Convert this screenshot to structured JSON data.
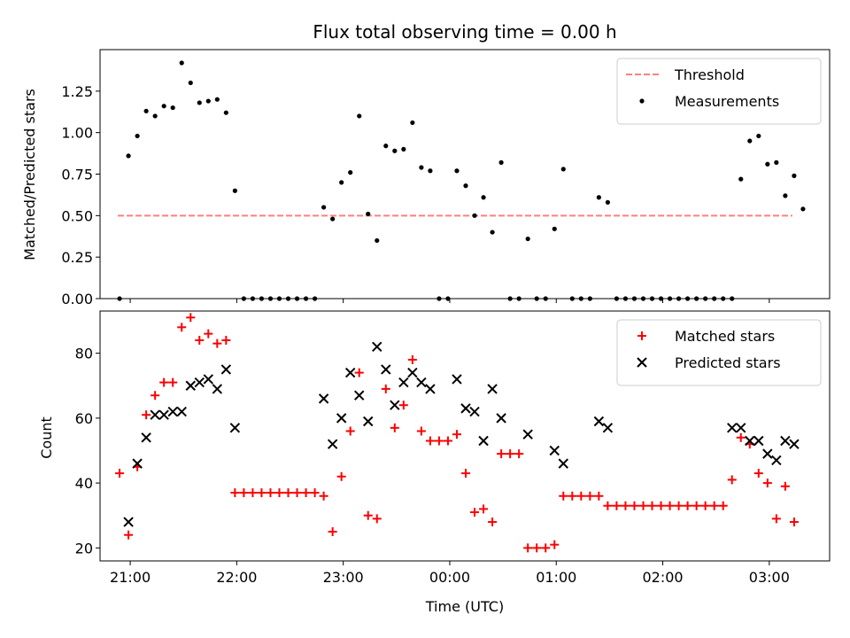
{
  "chart_data": [
    {
      "type": "scatter",
      "title": "Flux total observing time = 0.00 h",
      "xlabel": "",
      "ylabel": "Matched/Predicted stars",
      "ylim": [
        0,
        1.5
      ],
      "yticks": [
        0.0,
        0.25,
        0.5,
        0.75,
        1.0,
        1.25
      ],
      "ytick_labels": [
        "0.00",
        "0.25",
        "0.50",
        "0.75",
        "1.00",
        "1.25"
      ],
      "xlim": [
        "20:43",
        "03:34"
      ],
      "xticks": [
        "21:00",
        "22:00",
        "23:00",
        "00:00",
        "01:00",
        "02:00",
        "03:00"
      ],
      "legend_position": "top-right",
      "threshold": {
        "name": "Threshold",
        "value": 0.5,
        "x_start": "20:53",
        "x_end": "03:13",
        "color": "#ff7f7f"
      },
      "series": [
        {
          "name": "Measurements",
          "color": "#000000",
          "marker": "dot",
          "points": [
            [
              "20:54",
              0.0
            ],
            [
              "20:59",
              0.86
            ],
            [
              "21:04",
              0.98
            ],
            [
              "21:09",
              1.13
            ],
            [
              "21:14",
              1.1
            ],
            [
              "21:19",
              1.16
            ],
            [
              "21:24",
              1.15
            ],
            [
              "21:29",
              1.42
            ],
            [
              "21:34",
              1.3
            ],
            [
              "21:39",
              1.18
            ],
            [
              "21:44",
              1.19
            ],
            [
              "21:49",
              1.2
            ],
            [
              "21:54",
              1.12
            ],
            [
              "21:59",
              0.65
            ],
            [
              "22:04",
              0.0
            ],
            [
              "22:09",
              0.0
            ],
            [
              "22:14",
              0.0
            ],
            [
              "22:19",
              0.0
            ],
            [
              "22:24",
              0.0
            ],
            [
              "22:29",
              0.0
            ],
            [
              "22:34",
              0.0
            ],
            [
              "22:39",
              0.0
            ],
            [
              "22:44",
              0.0
            ],
            [
              "22:49",
              0.55
            ],
            [
              "22:54",
              0.48
            ],
            [
              "22:59",
              0.7
            ],
            [
              "23:04",
              0.76
            ],
            [
              "23:09",
              1.1
            ],
            [
              "23:14",
              0.51
            ],
            [
              "23:19",
              0.35
            ],
            [
              "23:24",
              0.92
            ],
            [
              "23:29",
              0.89
            ],
            [
              "23:34",
              0.9
            ],
            [
              "23:39",
              1.06
            ],
            [
              "23:44",
              0.79
            ],
            [
              "23:49",
              0.77
            ],
            [
              "23:54",
              0.0
            ],
            [
              "23:59",
              0.0
            ],
            [
              "00:04",
              0.77
            ],
            [
              "00:09",
              0.68
            ],
            [
              "00:14",
              0.5
            ],
            [
              "00:19",
              0.61
            ],
            [
              "00:24",
              0.4
            ],
            [
              "00:29",
              0.82
            ],
            [
              "00:34",
              0.0
            ],
            [
              "00:39",
              0.0
            ],
            [
              "00:44",
              0.36
            ],
            [
              "00:49",
              0.0
            ],
            [
              "00:54",
              0.0
            ],
            [
              "00:59",
              0.42
            ],
            [
              "01:04",
              0.78
            ],
            [
              "01:09",
              0.0
            ],
            [
              "01:14",
              0.0
            ],
            [
              "01:19",
              0.0
            ],
            [
              "01:24",
              0.61
            ],
            [
              "01:29",
              0.58
            ],
            [
              "01:34",
              0.0
            ],
            [
              "01:39",
              0.0
            ],
            [
              "01:44",
              0.0
            ],
            [
              "01:49",
              0.0
            ],
            [
              "01:54",
              0.0
            ],
            [
              "01:59",
              0.0
            ],
            [
              "02:04",
              0.0
            ],
            [
              "02:09",
              0.0
            ],
            [
              "02:14",
              0.0
            ],
            [
              "02:19",
              0.0
            ],
            [
              "02:24",
              0.0
            ],
            [
              "02:29",
              0.0
            ],
            [
              "02:34",
              0.0
            ],
            [
              "02:39",
              0.0
            ],
            [
              "02:44",
              0.72
            ],
            [
              "02:49",
              0.95
            ],
            [
              "02:54",
              0.98
            ],
            [
              "02:59",
              0.81
            ],
            [
              "03:04",
              0.82
            ],
            [
              "03:09",
              0.62
            ],
            [
              "03:14",
              0.74
            ],
            [
              "03:19",
              0.54
            ]
          ]
        }
      ]
    },
    {
      "type": "scatter",
      "title": "",
      "xlabel": "Time (UTC)",
      "ylabel": "Count",
      "ylim": [
        16,
        93
      ],
      "yticks": [
        20,
        40,
        60,
        80
      ],
      "ytick_labels": [
        "20",
        "40",
        "60",
        "80"
      ],
      "xlim": [
        "20:43",
        "03:34"
      ],
      "xticks": [
        "21:00",
        "22:00",
        "23:00",
        "00:00",
        "01:00",
        "02:00",
        "03:00"
      ],
      "xtick_labels": [
        "21:00",
        "22:00",
        "23:00",
        "00:00",
        "01:00",
        "02:00",
        "03:00"
      ],
      "legend_position": "top-right",
      "series": [
        {
          "name": "Matched stars",
          "color": "#ff0000",
          "marker": "plus",
          "points": [
            [
              "20:54",
              43
            ],
            [
              "20:59",
              24
            ],
            [
              "21:04",
              45
            ],
            [
              "21:09",
              61
            ],
            [
              "21:14",
              67
            ],
            [
              "21:19",
              71
            ],
            [
              "21:24",
              71
            ],
            [
              "21:29",
              88
            ],
            [
              "21:34",
              91
            ],
            [
              "21:39",
              84
            ],
            [
              "21:44",
              86
            ],
            [
              "21:49",
              83
            ],
            [
              "21:54",
              84
            ],
            [
              "21:59",
              37
            ],
            [
              "22:04",
              37
            ],
            [
              "22:09",
              37
            ],
            [
              "22:14",
              37
            ],
            [
              "22:19",
              37
            ],
            [
              "22:24",
              37
            ],
            [
              "22:29",
              37
            ],
            [
              "22:34",
              37
            ],
            [
              "22:39",
              37
            ],
            [
              "22:44",
              37
            ],
            [
              "22:49",
              36
            ],
            [
              "22:54",
              25
            ],
            [
              "22:59",
              42
            ],
            [
              "23:04",
              56
            ],
            [
              "23:09",
              74
            ],
            [
              "23:14",
              30
            ],
            [
              "23:19",
              29
            ],
            [
              "23:24",
              69
            ],
            [
              "23:29",
              57
            ],
            [
              "23:34",
              64
            ],
            [
              "23:39",
              78
            ],
            [
              "23:44",
              56
            ],
            [
              "23:49",
              53
            ],
            [
              "23:54",
              53
            ],
            [
              "23:59",
              53
            ],
            [
              "00:04",
              55
            ],
            [
              "00:09",
              43
            ],
            [
              "00:14",
              31
            ],
            [
              "00:19",
              32
            ],
            [
              "00:24",
              28
            ],
            [
              "00:29",
              49
            ],
            [
              "00:34",
              49
            ],
            [
              "00:39",
              49
            ],
            [
              "00:44",
              20
            ],
            [
              "00:49",
              20
            ],
            [
              "00:54",
              20
            ],
            [
              "00:59",
              21
            ],
            [
              "01:04",
              36
            ],
            [
              "01:09",
              36
            ],
            [
              "01:14",
              36
            ],
            [
              "01:19",
              36
            ],
            [
              "01:24",
              36
            ],
            [
              "01:29",
              33
            ],
            [
              "01:34",
              33
            ],
            [
              "01:39",
              33
            ],
            [
              "01:44",
              33
            ],
            [
              "01:49",
              33
            ],
            [
              "01:54",
              33
            ],
            [
              "01:59",
              33
            ],
            [
              "02:04",
              33
            ],
            [
              "02:09",
              33
            ],
            [
              "02:14",
              33
            ],
            [
              "02:19",
              33
            ],
            [
              "02:24",
              33
            ],
            [
              "02:29",
              33
            ],
            [
              "02:34",
              33
            ],
            [
              "02:39",
              41
            ],
            [
              "02:44",
              54
            ],
            [
              "02:49",
              52
            ],
            [
              "02:54",
              43
            ],
            [
              "02:59",
              40
            ],
            [
              "03:04",
              29
            ],
            [
              "03:09",
              39
            ],
            [
              "03:14",
              28
            ]
          ]
        },
        {
          "name": "Predicted stars",
          "color": "#000000",
          "marker": "x",
          "points": [
            [
              "20:59",
              28
            ],
            [
              "21:04",
              46
            ],
            [
              "21:09",
              54
            ],
            [
              "21:14",
              61
            ],
            [
              "21:19",
              61
            ],
            [
              "21:24",
              62
            ],
            [
              "21:29",
              62
            ],
            [
              "21:34",
              70
            ],
            [
              "21:39",
              71
            ],
            [
              "21:44",
              72
            ],
            [
              "21:49",
              69
            ],
            [
              "21:54",
              75
            ],
            [
              "21:59",
              57
            ],
            [
              "22:49",
              66
            ],
            [
              "22:54",
              52
            ],
            [
              "22:59",
              60
            ],
            [
              "23:04",
              74
            ],
            [
              "23:09",
              67
            ],
            [
              "23:14",
              59
            ],
            [
              "23:19",
              82
            ],
            [
              "23:24",
              75
            ],
            [
              "23:29",
              64
            ],
            [
              "23:34",
              71
            ],
            [
              "23:39",
              74
            ],
            [
              "23:44",
              71
            ],
            [
              "23:49",
              69
            ],
            [
              "00:04",
              72
            ],
            [
              "00:09",
              63
            ],
            [
              "00:14",
              62
            ],
            [
              "00:19",
              53
            ],
            [
              "00:24",
              69
            ],
            [
              "00:29",
              60
            ],
            [
              "00:44",
              55
            ],
            [
              "00:59",
              50
            ],
            [
              "01:04",
              46
            ],
            [
              "01:24",
              59
            ],
            [
              "01:29",
              57
            ],
            [
              "02:39",
              57
            ],
            [
              "02:44",
              57
            ],
            [
              "02:49",
              53
            ],
            [
              "02:54",
              53
            ],
            [
              "02:59",
              49
            ],
            [
              "03:04",
              47
            ],
            [
              "03:09",
              53
            ],
            [
              "03:14",
              52
            ]
          ]
        }
      ]
    }
  ]
}
